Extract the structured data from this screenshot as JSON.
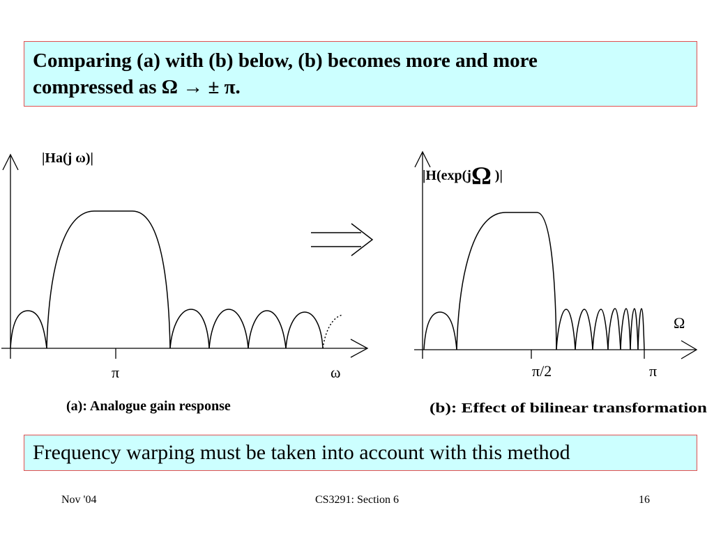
{
  "heading": {
    "line1": "Comparing (a) with (b) below,  (b) becomes more and more",
    "line2_prefix": "compressed as  ",
    "line2_math": "Ω → ± π."
  },
  "panel_a": {
    "ylabel": "|Ha(j   ω)|",
    "tick_pi": "π",
    "xlabel": "ω",
    "caption": "(a): Analogue gain response"
  },
  "panel_b": {
    "ylabel_prefix": "|H(exp(j",
    "ylabel_omega": "Ω",
    "ylabel_suffix": " )|",
    "xlabel": "Ω",
    "tick_pi2": "π/2",
    "tick_pi": "π",
    "caption": "(b): Effect of bilinear transformation"
  },
  "note": "Frequency warping must be taken into account with this method",
  "footer": {
    "left": "Nov '04",
    "center": "CS3291: Section 6",
    "right": "16"
  }
}
